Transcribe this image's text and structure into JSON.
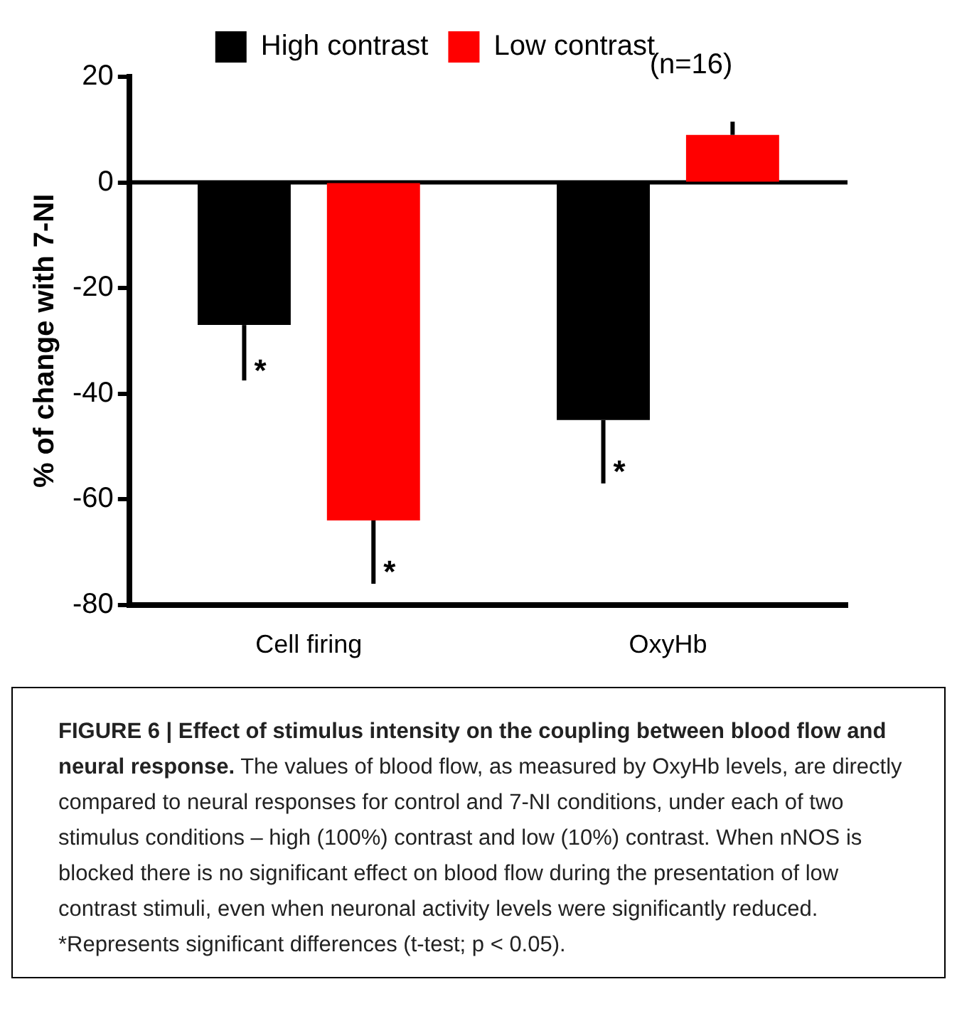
{
  "chart_data": {
    "type": "bar",
    "categories": [
      "Cell firing",
      "OxyHb"
    ],
    "series": [
      {
        "name": "High contrast",
        "color": "#000000",
        "values": [
          -27,
          -45
        ],
        "errors": [
          [
            -37.5,
            -27
          ],
          [
            -57,
            -45
          ]
        ]
      },
      {
        "name": "Low contrast",
        "color": "#ff0000",
        "values": [
          -64,
          9
        ],
        "errors": [
          [
            -76,
            -64
          ],
          [
            9,
            11.5
          ]
        ]
      }
    ],
    "ref_lines": [
      {
        "axis": "y",
        "value": 0,
        "color": "#000000"
      }
    ],
    "ylabel": "% of change with 7-NI",
    "ylim": [
      -80,
      20
    ],
    "yticks": [
      -80,
      -60,
      -40,
      -20,
      0,
      20
    ],
    "grid": false,
    "legend": "top",
    "title": "FIGURE 6 | Effect of stimulus intensity on the coupling between blood flow and neural response.",
    "annotations": [
      "(n=16)",
      "*",
      "*",
      "*",
      "The values of blood flow, as measured by OxyHb levels, are directly compared to neural responses for control and 7-NI conditions, under each of two stimulus conditions – high (100%) contrast and low (10%) contrast. When nNOS is blocked there is no significant effect on blood flow during the presentation of low contrast stimuli, even when neuronal activity levels were significantly reduced. *Represents significant differences (t-test; p < 0.05)."
    ]
  }
}
